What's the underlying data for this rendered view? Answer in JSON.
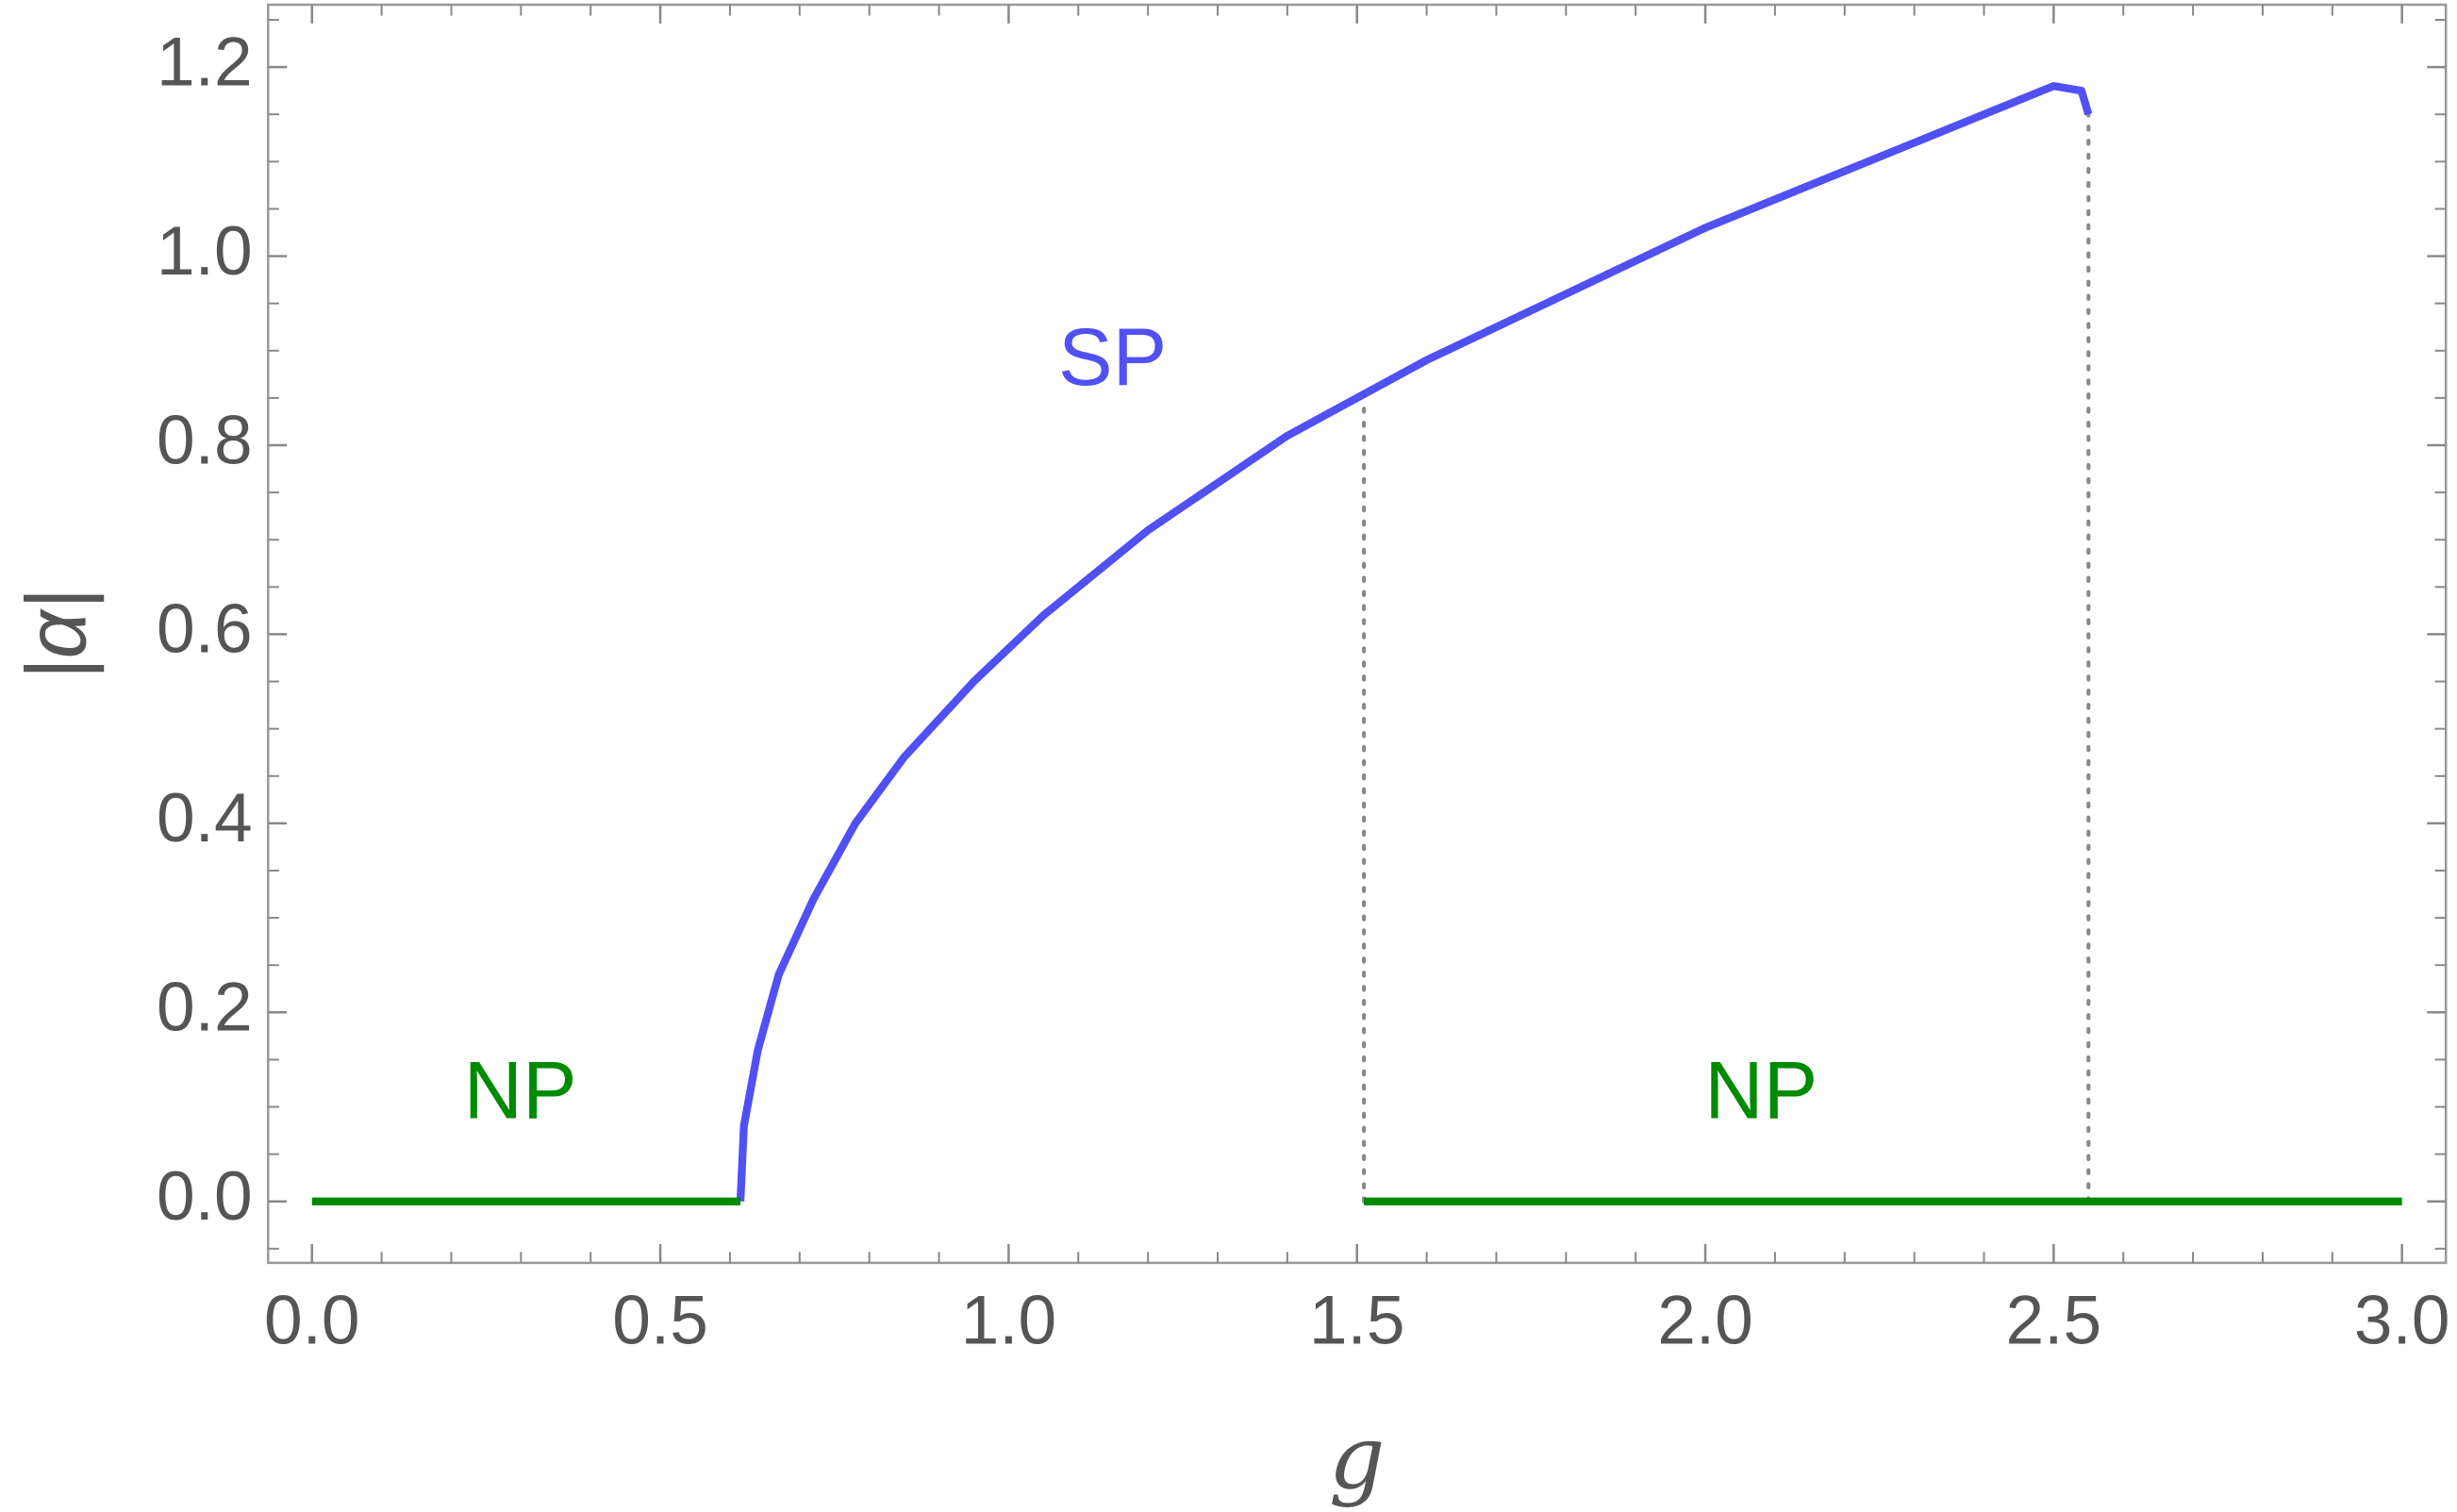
{
  "chart_data": {
    "type": "line",
    "x_label": "g",
    "y_label": "|α|",
    "series": [
      {
        "name": "SP",
        "color": "#5050f5",
        "x": [
          0.615,
          0.62,
          0.64,
          0.67,
          0.72,
          0.78,
          0.85,
          0.95,
          1.05,
          1.2,
          1.4,
          1.6,
          1.8,
          2.0,
          2.2,
          2.4,
          2.5,
          2.54,
          2.55
        ],
        "values": [
          0,
          0.08,
          0.16,
          0.24,
          0.32,
          0.4,
          0.47,
          0.55,
          0.62,
          0.71,
          0.81,
          0.89,
          0.96,
          1.03,
          1.09,
          1.15,
          1.18,
          1.175,
          1.15
        ]
      },
      {
        "name": "NP",
        "color": "#008a00",
        "x": [
          0,
          0.615,
          null,
          1.51,
          3.0
        ],
        "values": [
          0,
          0,
          null,
          0,
          0
        ]
      }
    ],
    "dotted_lines": {
      "x": [
        1.51,
        2.55
      ],
      "y_top": [
        0.84,
        1.15
      ],
      "color": "#888888"
    },
    "xlim": [
      -0.063,
      3.063
    ],
    "ylim": [
      -0.065,
      1.266
    ],
    "xticks": [
      {
        "value": 0,
        "label": "0.0"
      },
      0.5,
      {
        "value": 1,
        "label": "1.0"
      },
      1.5,
      {
        "value": 2,
        "label": "2.0"
      },
      2.5,
      {
        "value": 3,
        "label": "3.0"
      }
    ],
    "yticks": [
      {
        "value": 0,
        "label": "0.0"
      },
      0.2,
      0.4,
      0.6,
      0.8,
      {
        "value": 1,
        "label": "1.0"
      },
      1.2
    ],
    "xminorticks": [
      0.1,
      0.2,
      0.3,
      0.4,
      0.6,
      0.7,
      0.8,
      0.9,
      1.1,
      1.2,
      1.3,
      1.4,
      1.6,
      1.7,
      1.8,
      1.9,
      2.1,
      2.2,
      2.3,
      2.4,
      2.6,
      2.7,
      2.8,
      2.9
    ],
    "yminorticks": [
      -0.05,
      0.05,
      0.1,
      0.15,
      0.25,
      0.3,
      0.35,
      0.45,
      0.5,
      0.55,
      0.65,
      0.7,
      0.75,
      0.85,
      0.9,
      0.95,
      1.05,
      1.1,
      1.15,
      1.25
    ]
  }
}
